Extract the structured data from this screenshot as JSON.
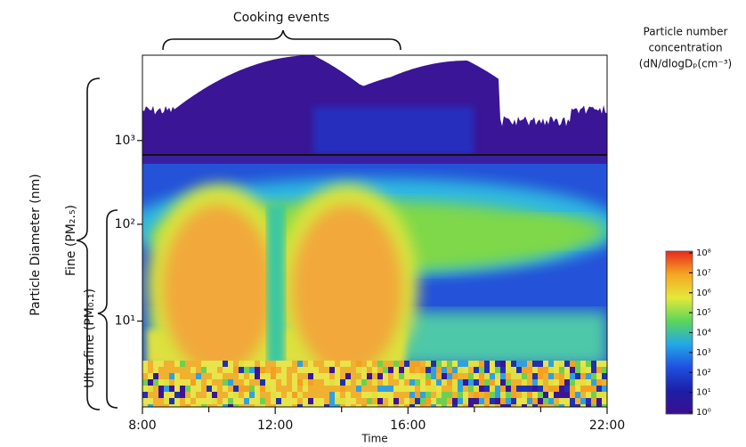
{
  "chart_data": {
    "type": "heatmap",
    "annotations": {
      "cooking": "Cooking events",
      "fine": "Fine (PM₂.₅)",
      "ultrafine": "Ultrafine (PM₀.₁)"
    },
    "ylabel": "Particle Diameter (nm)",
    "xlabel": "Time",
    "xlim": [
      8,
      22
    ],
    "xticks": [
      {
        "value": 8,
        "label": "8:00"
      },
      {
        "value": 12,
        "label": "12:00"
      },
      {
        "value": 16,
        "label": "16:00"
      },
      {
        "value": 22,
        "label": "22:00"
      }
    ],
    "xminor": [
      10,
      14,
      18,
      20
    ],
    "log_y": true,
    "panels": [
      {
        "ylim": [
          710,
          7600
        ],
        "yticks": [
          {
            "value": 1000,
            "label": "10³"
          }
        ]
      },
      {
        "ylim": [
          1.3,
          520
        ],
        "yticks": [
          {
            "value": 100,
            "label": "10²"
          },
          {
            "value": 10,
            "label": "10¹"
          }
        ]
      }
    ],
    "colorbar": {
      "title": [
        "Particle number",
        "concentration",
        "(dN/dlogDₚ(cm⁻³)"
      ],
      "lim": [
        1,
        100000000
      ],
      "ticks": [
        {
          "value": 1,
          "label": "10⁰"
        },
        {
          "value": 10,
          "label": "10¹"
        },
        {
          "value": 100,
          "label": "10²"
        },
        {
          "value": 1000,
          "label": "10³"
        },
        {
          "value": 10000,
          "label": "10⁴"
        },
        {
          "value": 100000,
          "label": "10⁵"
        },
        {
          "value": 1000000,
          "label": "10⁶"
        },
        {
          "value": 10000000,
          "label": "10⁷"
        },
        {
          "value": 100000000,
          "label": "10⁸"
        }
      ],
      "colors": [
        "#3b0f8c",
        "#1c1fa8",
        "#1f4fe0",
        "#22a8e8",
        "#5cd65a",
        "#e6e83a",
        "#f5a623",
        "#e8281e"
      ]
    }
  }
}
